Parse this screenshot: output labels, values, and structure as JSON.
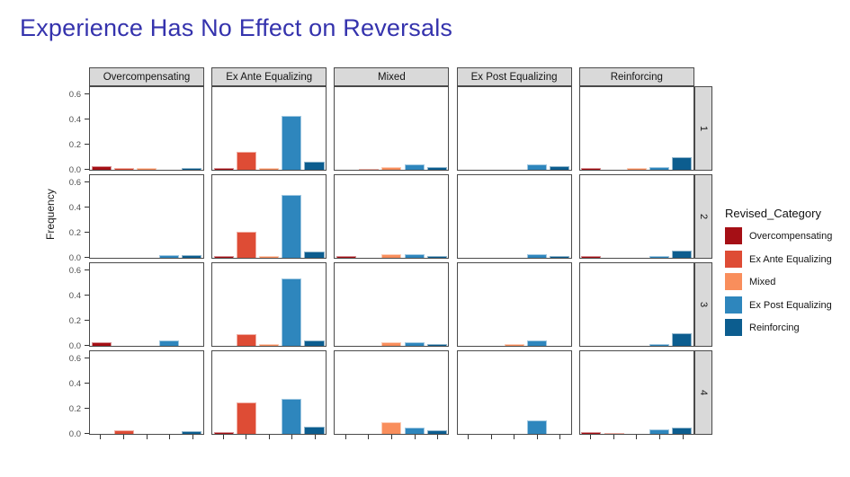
{
  "title": "Experience Has No Effect on Reversals",
  "title_color": "#3533ad",
  "chart_data": {
    "type": "bar",
    "facet_columns": [
      "Overcompensating",
      "Ex Ante Equalizing",
      "Mixed",
      "Ex Post Equalizing",
      "Reinforcing"
    ],
    "facet_rows": [
      "1",
      "2",
      "3",
      "4"
    ],
    "x_categories": [
      "Overcompensating",
      "Ex Ante Equalizing",
      "Mixed",
      "Ex Post Equalizing",
      "Reinforcing"
    ],
    "ylabel": "Frequency",
    "y_ticks": [
      0.0,
      0.2,
      0.4,
      0.6
    ],
    "y_tick_labels": [
      "0.0",
      "0.2",
      "0.4",
      "0.6"
    ],
    "ylim": [
      0,
      0.65
    ],
    "grid": "off",
    "legend": {
      "title": "Revised_Category",
      "position": "right",
      "entries": [
        {
          "label": "Overcompensating",
          "color": "#a50f15"
        },
        {
          "label": "Ex Ante Equalizing",
          "color": "#de4c35"
        },
        {
          "label": "Mixed",
          "color": "#f98e5c"
        },
        {
          "label": "Ex Post Equalizing",
          "color": "#2e86bd"
        },
        {
          "label": "Reinforcing",
          "color": "#0c5d8f"
        }
      ]
    },
    "facets": [
      {
        "row": "1",
        "col": "Overcompensating",
        "values": [
          0.03,
          0.012,
          0.012,
          0.0,
          0.015
        ]
      },
      {
        "row": "1",
        "col": "Ex Ante Equalizing",
        "values": [
          0.012,
          0.14,
          0.012,
          0.43,
          0.065
        ]
      },
      {
        "row": "1",
        "col": "Mixed",
        "values": [
          0.0,
          0.01,
          0.025,
          0.04,
          0.02
        ]
      },
      {
        "row": "1",
        "col": "Ex Post Equalizing",
        "values": [
          0.0,
          0.0,
          0.0,
          0.04,
          0.03
        ]
      },
      {
        "row": "1",
        "col": "Reinforcing",
        "values": [
          0.012,
          0.0,
          0.012,
          0.02,
          0.1
        ]
      },
      {
        "row": "2",
        "col": "Overcompensating",
        "values": [
          0.0,
          0.0,
          0.0,
          0.02,
          0.02
        ]
      },
      {
        "row": "2",
        "col": "Ex Ante Equalizing",
        "values": [
          0.015,
          0.21,
          0.015,
          0.5,
          0.05
        ]
      },
      {
        "row": "2",
        "col": "Mixed",
        "values": [
          0.012,
          0.0,
          0.028,
          0.03,
          0.012
        ]
      },
      {
        "row": "2",
        "col": "Ex Post Equalizing",
        "values": [
          0.0,
          0.0,
          0.0,
          0.03,
          0.012
        ]
      },
      {
        "row": "2",
        "col": "Reinforcing",
        "values": [
          0.012,
          0.0,
          0.0,
          0.012,
          0.055
        ]
      },
      {
        "row": "3",
        "col": "Overcompensating",
        "values": [
          0.028,
          0.0,
          0.0,
          0.04,
          0.0
        ]
      },
      {
        "row": "3",
        "col": "Ex Ante Equalizing",
        "values": [
          0.0,
          0.09,
          0.015,
          0.535,
          0.045
        ]
      },
      {
        "row": "3",
        "col": "Mixed",
        "values": [
          0.0,
          0.0,
          0.03,
          0.03,
          0.012
        ]
      },
      {
        "row": "3",
        "col": "Ex Post Equalizing",
        "values": [
          0.0,
          0.0,
          0.012,
          0.045,
          0.0
        ]
      },
      {
        "row": "3",
        "col": "Reinforcing",
        "values": [
          0.0,
          0.0,
          0.0,
          0.015,
          0.1
        ]
      },
      {
        "row": "4",
        "col": "Overcompensating",
        "values": [
          0.0,
          0.028,
          0.0,
          0.0,
          0.02
        ]
      },
      {
        "row": "4",
        "col": "Ex Ante Equalizing",
        "values": [
          0.012,
          0.25,
          0.0,
          0.28,
          0.06
        ]
      },
      {
        "row": "4",
        "col": "Mixed",
        "values": [
          0.0,
          0.0,
          0.09,
          0.05,
          0.03
        ]
      },
      {
        "row": "4",
        "col": "Ex Post Equalizing",
        "values": [
          0.0,
          0.0,
          0.0,
          0.11,
          0.0
        ]
      },
      {
        "row": "4",
        "col": "Reinforcing",
        "values": [
          0.012,
          0.01,
          0.0,
          0.035,
          0.05
        ]
      }
    ]
  }
}
